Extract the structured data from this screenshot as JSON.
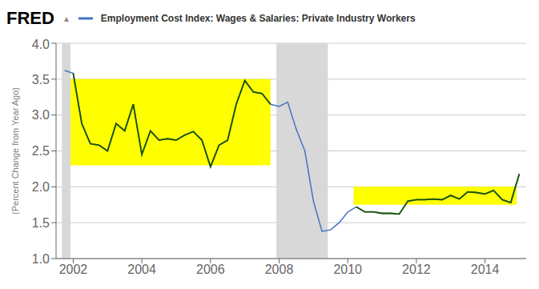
{
  "chart_data": {
    "type": "line",
    "title": "Employment Cost Index: Wages & Salaries: Private Industry Workers",
    "ylabel": "(Percent Change from Year Ago)",
    "annotations": [
      "FRED",
      "▲"
    ],
    "x": [
      2001.75,
      2002.0,
      2002.25,
      2002.5,
      2002.75,
      2003.0,
      2003.25,
      2003.5,
      2003.75,
      2004.0,
      2004.25,
      2004.5,
      2004.75,
      2005.0,
      2005.25,
      2005.5,
      2005.75,
      2006.0,
      2006.25,
      2006.5,
      2006.75,
      2007.0,
      2007.25,
      2007.5,
      2007.75,
      2008.0,
      2008.25,
      2008.5,
      2008.75,
      2009.0,
      2009.25,
      2009.5,
      2009.75,
      2010.0,
      2010.25,
      2010.5,
      2010.75,
      2011.0,
      2011.25,
      2011.5,
      2011.75,
      2012.0,
      2012.25,
      2012.5,
      2012.75,
      2013.0,
      2013.25,
      2013.5,
      2013.75,
      2014.0,
      2014.25,
      2014.5,
      2014.75,
      2015.0
    ],
    "series": [
      {
        "color": "#4472c4",
        "values": [
          3.62,
          3.58,
          2.88,
          2.6,
          2.58,
          2.5,
          2.88,
          2.78,
          3.15,
          2.45,
          2.78,
          2.65,
          2.67,
          2.65,
          2.72,
          2.77,
          2.65,
          2.28,
          2.58,
          2.65,
          3.15,
          3.48,
          3.32,
          3.3,
          3.15,
          3.12,
          3.18,
          2.8,
          2.5,
          1.8,
          1.38,
          1.4,
          1.5,
          1.65,
          1.72,
          1.65,
          1.65,
          1.63,
          1.63,
          1.62,
          1.8,
          1.82,
          1.82,
          1.83,
          1.82,
          1.88,
          1.83,
          1.93,
          1.92,
          1.9,
          1.95,
          1.82,
          1.78,
          2.18
        ]
      }
    ],
    "xlim": [
      2001.5,
      2015.2
    ],
    "xticks": [
      2002,
      2004,
      2006,
      2008,
      2010,
      2012,
      2014
    ],
    "ylim": [
      1.0,
      4.0
    ],
    "yticks": [
      {
        "value": 1.0,
        "label": "1.0"
      },
      {
        "value": 1.5,
        "label": "1.5"
      },
      {
        "value": 2.0,
        "label": "2.0"
      },
      {
        "value": 2.5,
        "label": "2.5"
      },
      {
        "value": 3.0,
        "label": "3.0"
      },
      {
        "value": 3.5,
        "label": "3.5"
      },
      {
        "value": 4.0,
        "label": "4.0"
      }
    ],
    "grid": true,
    "recessions": [
      {
        "x": [
          2001.67,
          2001.92
        ],
        "color": "#d8d8d8"
      },
      {
        "x": [
          2007.92,
          2009.42
        ],
        "color": "#d8d8d8"
      }
    ],
    "highlights": [
      {
        "x": [
          2001.92,
          2007.75
        ],
        "y": [
          2.3,
          3.5
        ],
        "color": "#ffff00",
        "line_color": "#1a5200"
      },
      {
        "x": [
          2010.17,
          2014.92
        ],
        "y": [
          1.75,
          2.0
        ],
        "color": "#ffff00",
        "line_color": "#1a5200"
      }
    ]
  }
}
